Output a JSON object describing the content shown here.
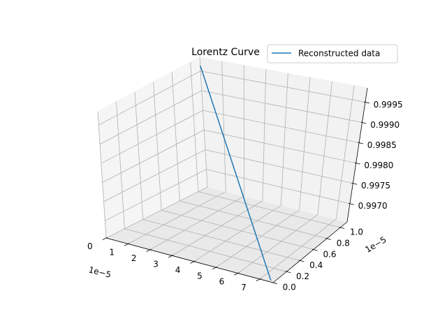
{
  "chart_data": {
    "type": "line",
    "projection": "3d",
    "title": "Lorentz Curve",
    "legend": {
      "placement": "top-right",
      "entries": [
        "Reconstructed data"
      ]
    },
    "grid": true,
    "axes": {
      "x": {
        "label": "",
        "offset_text": "1e−5",
        "lim": [
          0,
          7.6
        ],
        "ticks": [
          0,
          1,
          2,
          3,
          4,
          5,
          6,
          7
        ],
        "tick_labels": [
          "0",
          "1",
          "2",
          "3",
          "4",
          "5",
          "6",
          "7"
        ]
      },
      "y": {
        "label": "",
        "offset_text": "1e−5",
        "lim": [
          0,
          1.1
        ],
        "ticks": [
          0.0,
          0.2,
          0.4,
          0.6,
          0.8,
          1.0
        ],
        "tick_labels": [
          "0.0",
          "0.2",
          "0.4",
          "0.6",
          "0.8",
          "1.0"
        ]
      },
      "z": {
        "label": "",
        "lim": [
          0.99655,
          0.99985
        ],
        "ticks": [
          0.997,
          0.9975,
          0.998,
          0.9985,
          0.999,
          0.9995
        ],
        "tick_labels": [
          "0.9970",
          "0.9975",
          "0.9980",
          "0.9985",
          "0.9990",
          "0.9995"
        ]
      }
    },
    "series": [
      {
        "name": "Reconstructed data",
        "color": "#1f77b4",
        "x": [
          0.05,
          7.5
        ],
        "y": [
          1.09,
          0.0
        ],
        "z": [
          0.99965,
          0.99659
        ]
      }
    ]
  },
  "colors": {
    "pane": "#f2f2f2",
    "pane_edge": "#f2f2f2",
    "grid": "#b0b0b0",
    "axis": "#000000"
  }
}
